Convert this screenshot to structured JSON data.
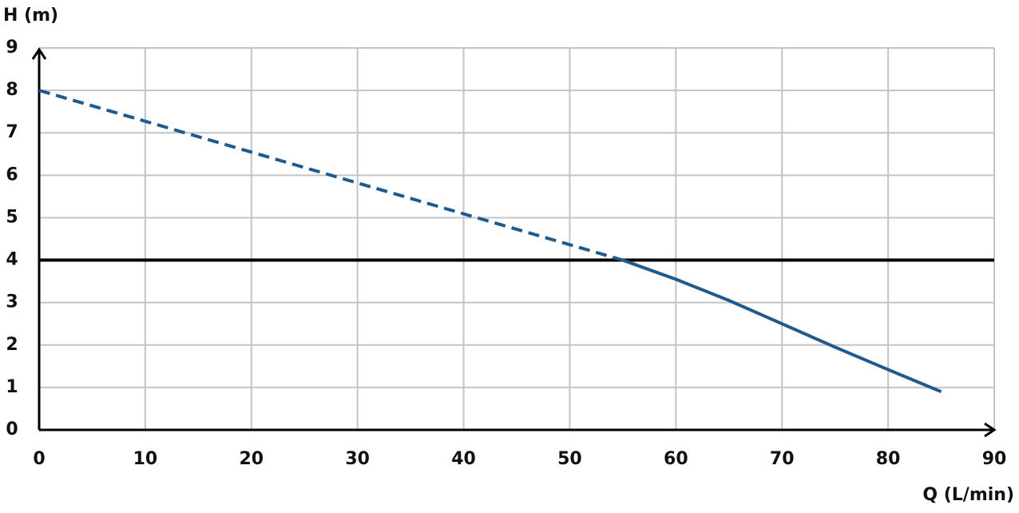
{
  "chart_data": {
    "type": "line",
    "y_label": "H (m)",
    "x_label": "Q (L/min)",
    "series": [
      {
        "x": [
          0,
          55
        ],
        "values": [
          8,
          4
        ],
        "color": "#1f5a8e",
        "dashed": true
      },
      {
        "x": [
          55,
          60,
          65,
          70,
          75,
          80,
          85
        ],
        "values": [
          4,
          3.55,
          3.05,
          2.5,
          1.95,
          1.42,
          0.9
        ],
        "color": "#1f5a8e",
        "dashed": false
      }
    ],
    "hline": 4,
    "hline_color": "#000000",
    "xlim": [
      0,
      90
    ],
    "ylim": [
      0,
      9
    ],
    "xticks": [
      0,
      10,
      20,
      30,
      40,
      50,
      60,
      70,
      80,
      90
    ],
    "yticks": [
      0,
      1,
      2,
      3,
      4,
      5,
      6,
      7,
      8,
      9
    ],
    "grid": true
  }
}
